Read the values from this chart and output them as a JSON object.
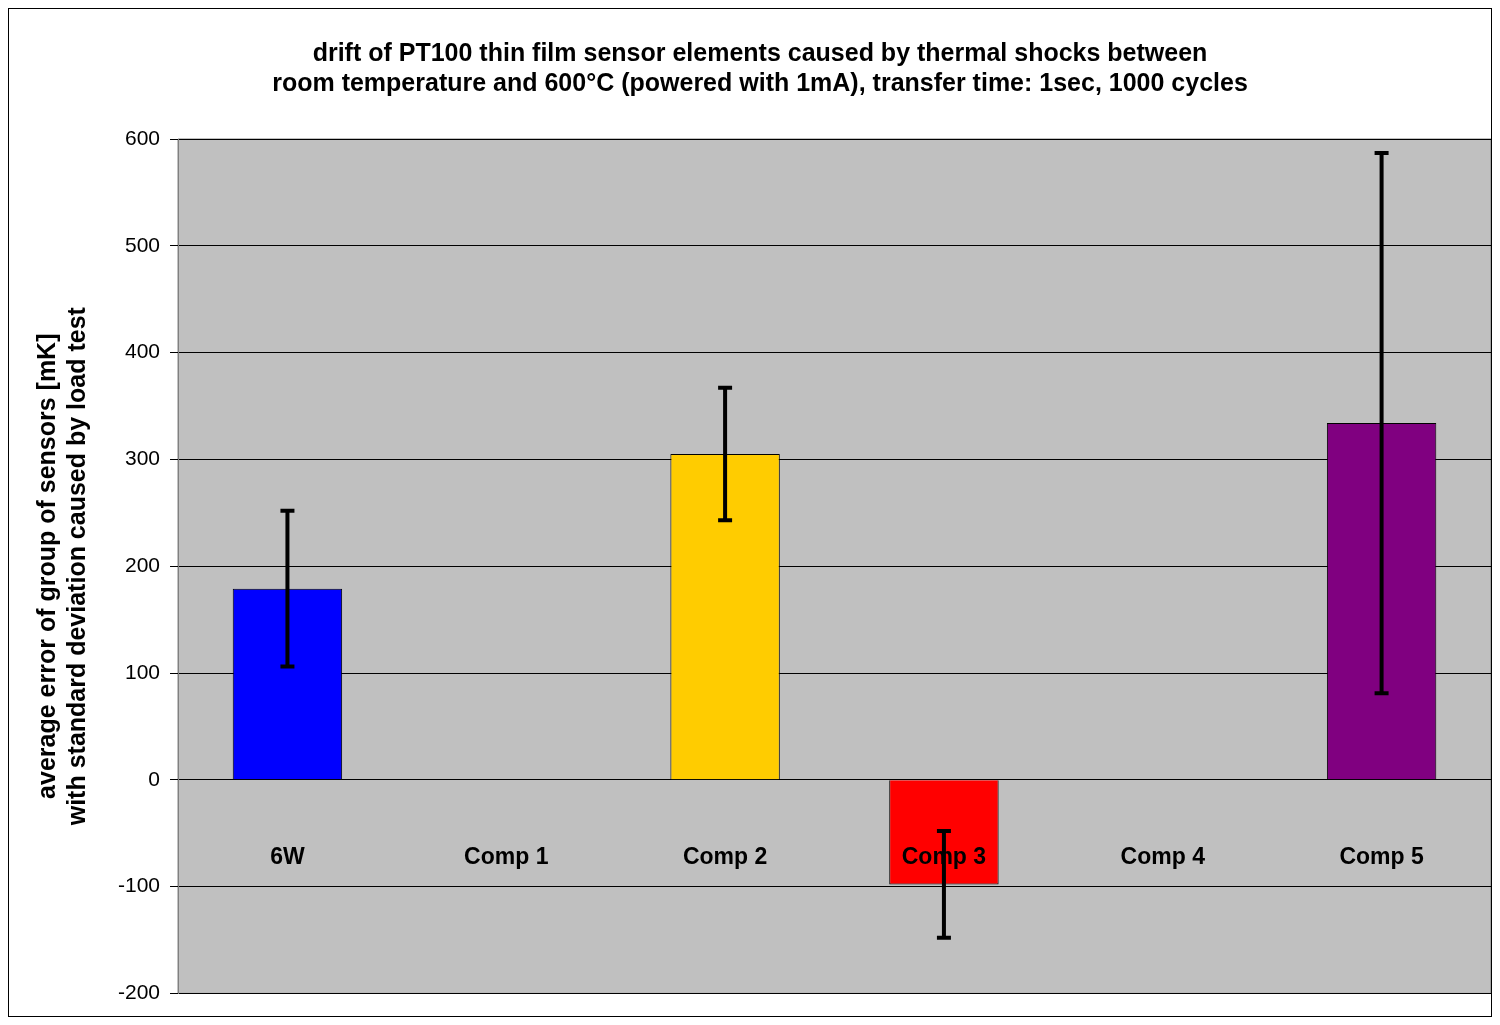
{
  "chart_data": {
    "type": "bar",
    "title": "drift of PT100 thin film sensor elements caused by thermal shocks between\nroom temperature and 600°C (powered with 1mA), transfer time: 1sec, 1000 cycles",
    "ylabel": "average error of group of sensors [mK]\nwith standard deviation caused by load test",
    "categories": [
      "6W",
      "Comp 1",
      "Comp 2",
      "Comp 3",
      "Comp 4",
      "Comp 5"
    ],
    "values": [
      179,
      null,
      305,
      -98,
      null,
      334
    ],
    "errors": [
      73,
      null,
      62,
      50,
      null,
      253
    ],
    "colors": [
      "#0000ff",
      "#c0c0c0",
      "#ffcc00",
      "#ff0000",
      "#c0c0c0",
      "#800080"
    ],
    "ylim": [
      -200,
      600
    ],
    "yticks": [
      -200,
      -100,
      0,
      100,
      200,
      300,
      400,
      500,
      600
    ],
    "grid": "y",
    "legend": false
  }
}
